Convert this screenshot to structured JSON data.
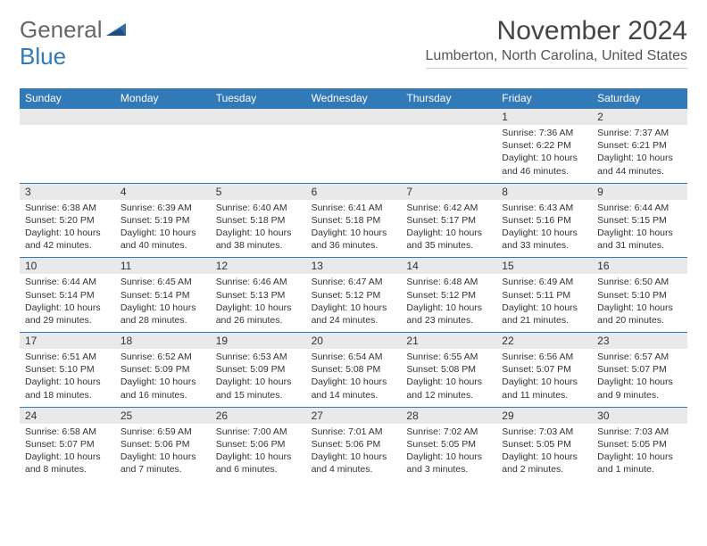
{
  "colors": {
    "header_bar": "#3279b7",
    "daynum_bg": "#e9e9e9",
    "text": "#333333",
    "title": "#444444",
    "logo_gray": "#666666",
    "logo_blue": "#3279b7",
    "border": "#cccccc"
  },
  "logo": {
    "part1": "General",
    "part2": "Blue"
  },
  "title": "November 2024",
  "location": "Lumberton, North Carolina, United States",
  "weekdays": [
    "Sunday",
    "Monday",
    "Tuesday",
    "Wednesday",
    "Thursday",
    "Friday",
    "Saturday"
  ],
  "weeks": [
    [
      {
        "num": "",
        "sunrise": "",
        "sunset": "",
        "daylight": ""
      },
      {
        "num": "",
        "sunrise": "",
        "sunset": "",
        "daylight": ""
      },
      {
        "num": "",
        "sunrise": "",
        "sunset": "",
        "daylight": ""
      },
      {
        "num": "",
        "sunrise": "",
        "sunset": "",
        "daylight": ""
      },
      {
        "num": "",
        "sunrise": "",
        "sunset": "",
        "daylight": ""
      },
      {
        "num": "1",
        "sunrise": "Sunrise: 7:36 AM",
        "sunset": "Sunset: 6:22 PM",
        "daylight": "Daylight: 10 hours and 46 minutes."
      },
      {
        "num": "2",
        "sunrise": "Sunrise: 7:37 AM",
        "sunset": "Sunset: 6:21 PM",
        "daylight": "Daylight: 10 hours and 44 minutes."
      }
    ],
    [
      {
        "num": "3",
        "sunrise": "Sunrise: 6:38 AM",
        "sunset": "Sunset: 5:20 PM",
        "daylight": "Daylight: 10 hours and 42 minutes."
      },
      {
        "num": "4",
        "sunrise": "Sunrise: 6:39 AM",
        "sunset": "Sunset: 5:19 PM",
        "daylight": "Daylight: 10 hours and 40 minutes."
      },
      {
        "num": "5",
        "sunrise": "Sunrise: 6:40 AM",
        "sunset": "Sunset: 5:18 PM",
        "daylight": "Daylight: 10 hours and 38 minutes."
      },
      {
        "num": "6",
        "sunrise": "Sunrise: 6:41 AM",
        "sunset": "Sunset: 5:18 PM",
        "daylight": "Daylight: 10 hours and 36 minutes."
      },
      {
        "num": "7",
        "sunrise": "Sunrise: 6:42 AM",
        "sunset": "Sunset: 5:17 PM",
        "daylight": "Daylight: 10 hours and 35 minutes."
      },
      {
        "num": "8",
        "sunrise": "Sunrise: 6:43 AM",
        "sunset": "Sunset: 5:16 PM",
        "daylight": "Daylight: 10 hours and 33 minutes."
      },
      {
        "num": "9",
        "sunrise": "Sunrise: 6:44 AM",
        "sunset": "Sunset: 5:15 PM",
        "daylight": "Daylight: 10 hours and 31 minutes."
      }
    ],
    [
      {
        "num": "10",
        "sunrise": "Sunrise: 6:44 AM",
        "sunset": "Sunset: 5:14 PM",
        "daylight": "Daylight: 10 hours and 29 minutes."
      },
      {
        "num": "11",
        "sunrise": "Sunrise: 6:45 AM",
        "sunset": "Sunset: 5:14 PM",
        "daylight": "Daylight: 10 hours and 28 minutes."
      },
      {
        "num": "12",
        "sunrise": "Sunrise: 6:46 AM",
        "sunset": "Sunset: 5:13 PM",
        "daylight": "Daylight: 10 hours and 26 minutes."
      },
      {
        "num": "13",
        "sunrise": "Sunrise: 6:47 AM",
        "sunset": "Sunset: 5:12 PM",
        "daylight": "Daylight: 10 hours and 24 minutes."
      },
      {
        "num": "14",
        "sunrise": "Sunrise: 6:48 AM",
        "sunset": "Sunset: 5:12 PM",
        "daylight": "Daylight: 10 hours and 23 minutes."
      },
      {
        "num": "15",
        "sunrise": "Sunrise: 6:49 AM",
        "sunset": "Sunset: 5:11 PM",
        "daylight": "Daylight: 10 hours and 21 minutes."
      },
      {
        "num": "16",
        "sunrise": "Sunrise: 6:50 AM",
        "sunset": "Sunset: 5:10 PM",
        "daylight": "Daylight: 10 hours and 20 minutes."
      }
    ],
    [
      {
        "num": "17",
        "sunrise": "Sunrise: 6:51 AM",
        "sunset": "Sunset: 5:10 PM",
        "daylight": "Daylight: 10 hours and 18 minutes."
      },
      {
        "num": "18",
        "sunrise": "Sunrise: 6:52 AM",
        "sunset": "Sunset: 5:09 PM",
        "daylight": "Daylight: 10 hours and 16 minutes."
      },
      {
        "num": "19",
        "sunrise": "Sunrise: 6:53 AM",
        "sunset": "Sunset: 5:09 PM",
        "daylight": "Daylight: 10 hours and 15 minutes."
      },
      {
        "num": "20",
        "sunrise": "Sunrise: 6:54 AM",
        "sunset": "Sunset: 5:08 PM",
        "daylight": "Daylight: 10 hours and 14 minutes."
      },
      {
        "num": "21",
        "sunrise": "Sunrise: 6:55 AM",
        "sunset": "Sunset: 5:08 PM",
        "daylight": "Daylight: 10 hours and 12 minutes."
      },
      {
        "num": "22",
        "sunrise": "Sunrise: 6:56 AM",
        "sunset": "Sunset: 5:07 PM",
        "daylight": "Daylight: 10 hours and 11 minutes."
      },
      {
        "num": "23",
        "sunrise": "Sunrise: 6:57 AM",
        "sunset": "Sunset: 5:07 PM",
        "daylight": "Daylight: 10 hours and 9 minutes."
      }
    ],
    [
      {
        "num": "24",
        "sunrise": "Sunrise: 6:58 AM",
        "sunset": "Sunset: 5:07 PM",
        "daylight": "Daylight: 10 hours and 8 minutes."
      },
      {
        "num": "25",
        "sunrise": "Sunrise: 6:59 AM",
        "sunset": "Sunset: 5:06 PM",
        "daylight": "Daylight: 10 hours and 7 minutes."
      },
      {
        "num": "26",
        "sunrise": "Sunrise: 7:00 AM",
        "sunset": "Sunset: 5:06 PM",
        "daylight": "Daylight: 10 hours and 6 minutes."
      },
      {
        "num": "27",
        "sunrise": "Sunrise: 7:01 AM",
        "sunset": "Sunset: 5:06 PM",
        "daylight": "Daylight: 10 hours and 4 minutes."
      },
      {
        "num": "28",
        "sunrise": "Sunrise: 7:02 AM",
        "sunset": "Sunset: 5:05 PM",
        "daylight": "Daylight: 10 hours and 3 minutes."
      },
      {
        "num": "29",
        "sunrise": "Sunrise: 7:03 AM",
        "sunset": "Sunset: 5:05 PM",
        "daylight": "Daylight: 10 hours and 2 minutes."
      },
      {
        "num": "30",
        "sunrise": "Sunrise: 7:03 AM",
        "sunset": "Sunset: 5:05 PM",
        "daylight": "Daylight: 10 hours and 1 minute."
      }
    ]
  ]
}
